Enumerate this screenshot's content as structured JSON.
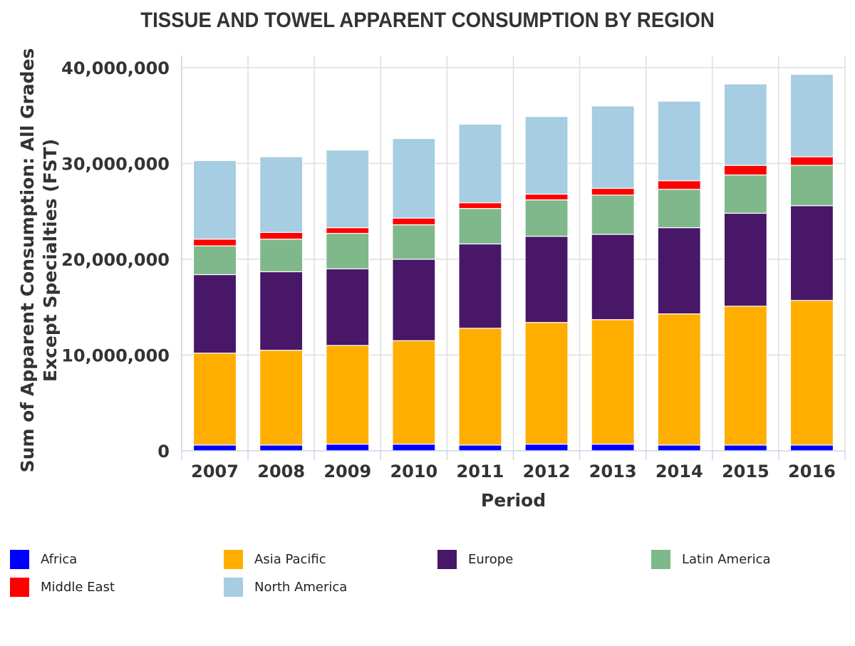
{
  "chart_data": {
    "type": "bar",
    "stacked": true,
    "title": "TISSUE AND TOWEL APPARENT CONSUMPTION BY REGION",
    "xlabel": "Period",
    "ylabel_lines": [
      "Sum of Apparent Consumption: All Grades",
      "Except Specialties (FST)"
    ],
    "ylim": [
      0,
      40000000
    ],
    "yticks": [
      0,
      10000000,
      20000000,
      30000000,
      40000000
    ],
    "ytick_labels": [
      "0",
      "10,000,000",
      "20,000,000",
      "30,000,000",
      "40,000,000"
    ],
    "grid": true,
    "legend_position": "bottom",
    "categories": [
      "2007",
      "2008",
      "2009",
      "2010",
      "2011",
      "2012",
      "2013",
      "2014",
      "2015",
      "2016"
    ],
    "series": [
      {
        "name": "Africa",
        "color": "#0000ff",
        "values": [
          600000,
          600000,
          700000,
          700000,
          600000,
          700000,
          700000,
          600000,
          600000,
          600000
        ]
      },
      {
        "name": "Asia Pacific",
        "color": "#ffae00",
        "values": [
          9600000,
          9900000,
          10300000,
          10800000,
          12200000,
          12700000,
          13000000,
          13700000,
          14500000,
          15100000
        ]
      },
      {
        "name": "Europe",
        "color": "#481768",
        "values": [
          8200000,
          8200000,
          8000000,
          8500000,
          8800000,
          9000000,
          8900000,
          9000000,
          9700000,
          9900000
        ]
      },
      {
        "name": "Latin America",
        "color": "#7fb88a",
        "values": [
          3000000,
          3400000,
          3700000,
          3600000,
          3700000,
          3800000,
          4100000,
          4000000,
          4000000,
          4200000
        ]
      },
      {
        "name": "Middle East",
        "color": "#ff0000",
        "values": [
          700000,
          700000,
          600000,
          700000,
          600000,
          600000,
          700000,
          900000,
          1000000,
          900000
        ]
      },
      {
        "name": "North America",
        "color": "#a6cde2",
        "values": [
          8200000,
          7900000,
          8100000,
          8300000,
          8200000,
          8100000,
          8600000,
          8300000,
          8500000,
          8600000
        ]
      }
    ]
  }
}
